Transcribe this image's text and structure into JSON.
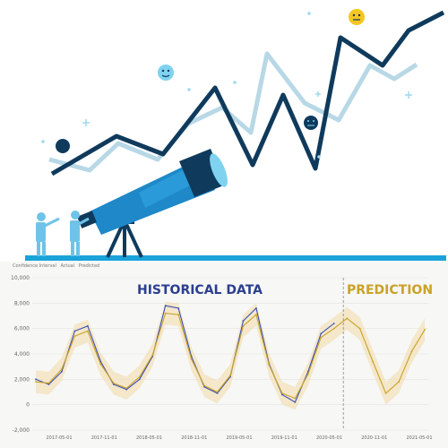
{
  "illustration": {
    "dark_line_color": "#0f3a5c",
    "light_line_color": "#b8d8e6",
    "accent_color": "#1e88c8",
    "ground_color": "#1aa3d9",
    "icons": [
      "telescope-icon",
      "person-icon",
      "neutral-face-icon",
      "smile-face-icon",
      "sparkle-icon"
    ]
  },
  "chart_data": {
    "type": "line",
    "legend": [
      "Confidence Interval",
      "Actual",
      "Predicted"
    ],
    "annotations": [
      "HISTORICAL DATA",
      "PREDICTION"
    ],
    "y_ticks": [
      "10,000",
      "8,000",
      "6,000",
      "4,000",
      "2,000",
      "0",
      "-2,000"
    ],
    "x_ticks": [
      "2017-05-01",
      "2017-11-01",
      "2018-05-01",
      "2018-11-01",
      "2019-05-01",
      "2019-11-01",
      "2020-05-01",
      "2020-11-01",
      "2021-05-01"
    ],
    "ylim": [
      -2000,
      10000
    ],
    "grid": true,
    "colors": {
      "actual": "#3a4fb8",
      "predicted": "#c9a227",
      "confidence": "#f2dfb8",
      "divider": "#888888"
    },
    "series": [
      {
        "name": "Actual",
        "values": [
          2000,
          1600,
          2600,
          5800,
          6200,
          3400,
          1600,
          1200,
          2000,
          3800,
          7800,
          7600,
          3800,
          1400,
          900,
          2200,
          6600,
          7600,
          3200,
          800,
          200,
          2600,
          5600,
          6400
        ]
      },
      {
        "name": "Predicted",
        "values": [
          1800,
          1700,
          2800,
          5400,
          5800,
          3200,
          1700,
          1300,
          2200,
          3900,
          7200,
          7100,
          3600,
          1500,
          1000,
          2300,
          6200,
          7100,
          3100,
          900,
          500,
          2400,
          5300,
          6000,
          6800,
          6000,
          3400,
          900,
          1800,
          4200,
          5900
        ]
      }
    ],
    "prediction_start_index": 24
  }
}
